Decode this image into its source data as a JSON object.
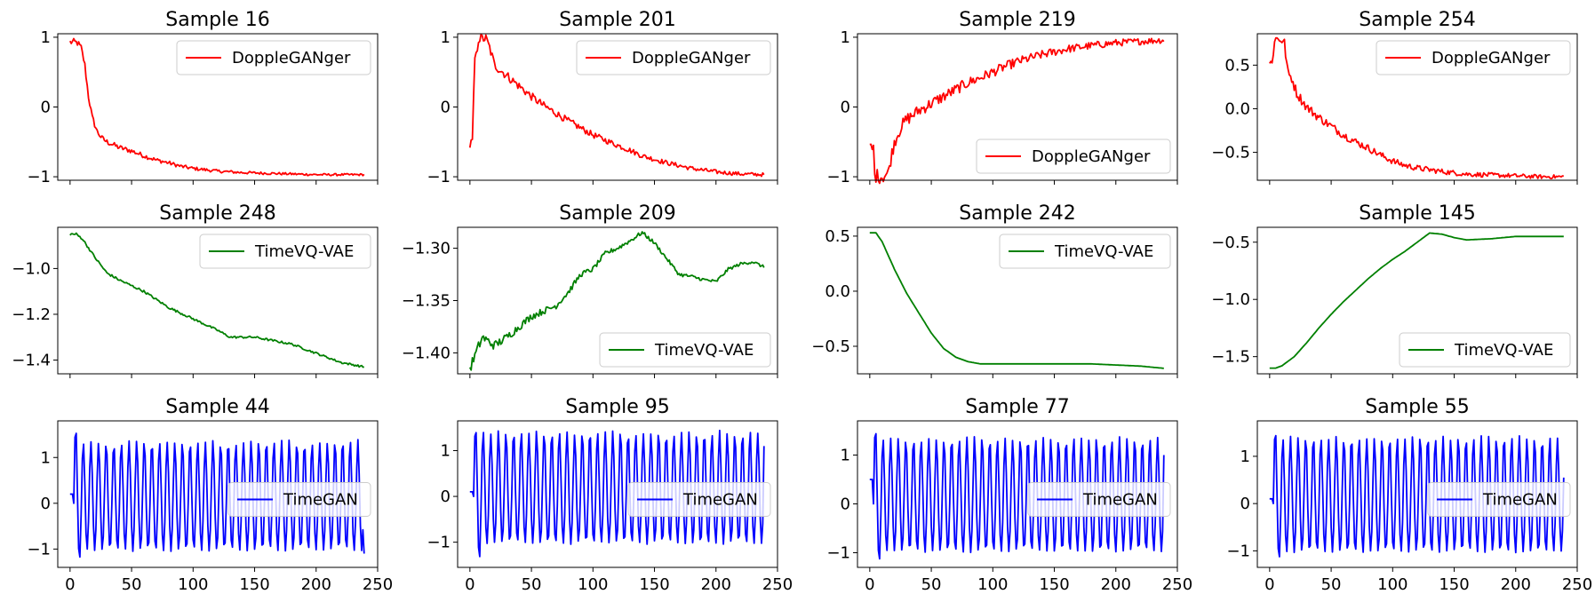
{
  "figure": {
    "rows": 3,
    "cols": 4,
    "x_ticks": [
      0,
      50,
      100,
      150,
      200,
      250
    ],
    "x_range": [
      -10,
      250
    ]
  },
  "chart_data": [
    {
      "type": "line",
      "title": "Sample 16",
      "legend": "DoppleGANger",
      "color": "#ff0000",
      "ylim": [
        -1.05,
        1.05
      ],
      "yticks": [
        1,
        0,
        -1
      ],
      "ytick_labels": [
        "1",
        "0",
        "−1"
      ],
      "legend_loc": "upper-right",
      "x_ticks_shown": false,
      "series": {
        "x": [
          0,
          3,
          6,
          9,
          12,
          15,
          18,
          22,
          26,
          30,
          40,
          50,
          60,
          70,
          80,
          90,
          100,
          120,
          140,
          160,
          180,
          200,
          220,
          239
        ],
        "values": [
          0.93,
          0.93,
          0.92,
          0.85,
          0.6,
          0.15,
          -0.15,
          -0.35,
          -0.45,
          -0.5,
          -0.58,
          -0.63,
          -0.7,
          -0.76,
          -0.8,
          -0.85,
          -0.88,
          -0.92,
          -0.94,
          -0.95,
          -0.96,
          -0.97,
          -0.97,
          -0.97
        ],
        "noise": 0.04,
        "noise_decay": 90
      }
    },
    {
      "type": "line",
      "title": "Sample 201",
      "legend": "DoppleGANger",
      "color": "#ff0000",
      "ylim": [
        -1.05,
        1.05
      ],
      "yticks": [
        1,
        0,
        -1
      ],
      "ytick_labels": [
        "1",
        "0",
        "−1"
      ],
      "legend_loc": "upper-right",
      "x_ticks_shown": false,
      "series": {
        "x": [
          0,
          2,
          4,
          5,
          7,
          9,
          13,
          16,
          20,
          30,
          40,
          50,
          60,
          80,
          100,
          120,
          130,
          140,
          160,
          180,
          200,
          220,
          239
        ],
        "values": [
          -0.55,
          -0.5,
          0.7,
          0.72,
          0.98,
          0.98,
          0.98,
          0.85,
          0.6,
          0.45,
          0.3,
          0.15,
          0.02,
          -0.2,
          -0.4,
          -0.55,
          -0.62,
          -0.7,
          -0.8,
          -0.88,
          -0.93,
          -0.96,
          -0.97
        ],
        "noise": 0.06,
        "noise_decay": 120
      }
    },
    {
      "type": "line",
      "title": "Sample 219",
      "legend": "DoppleGANger",
      "color": "#ff0000",
      "ylim": [
        -1.05,
        1.05
      ],
      "yticks": [
        1,
        0,
        -1
      ],
      "ytick_labels": [
        "1",
        "0",
        "−1"
      ],
      "legend_loc": "lower-right",
      "x_ticks_shown": false,
      "series": {
        "x": [
          0,
          3,
          4,
          10,
          15,
          17,
          20,
          25,
          30,
          40,
          50,
          60,
          70,
          80,
          90,
          100,
          110,
          120,
          140,
          160,
          180,
          200,
          220,
          239
        ],
        "values": [
          -0.6,
          -0.6,
          -0.98,
          -1.0,
          -0.95,
          -0.75,
          -0.5,
          -0.3,
          -0.18,
          -0.05,
          0.05,
          0.15,
          0.25,
          0.35,
          0.42,
          0.5,
          0.58,
          0.65,
          0.75,
          0.83,
          0.88,
          0.92,
          0.94,
          0.96
        ],
        "noise": 0.08,
        "noise_decay": 180
      }
    },
    {
      "type": "line",
      "title": "Sample 254",
      "legend": "DoppleGANger",
      "color": "#ff0000",
      "ylim": [
        -0.82,
        0.86
      ],
      "yticks": [
        0.5,
        0.0,
        -0.5
      ],
      "ytick_labels": [
        "0.5",
        "0.0",
        "−0.5"
      ],
      "legend_loc": "upper-right",
      "x_ticks_shown": false,
      "series": {
        "x": [
          0,
          2,
          4,
          6,
          9,
          12,
          15,
          18,
          22,
          26,
          30,
          40,
          50,
          60,
          70,
          80,
          90,
          100,
          110,
          120,
          140,
          160,
          180,
          200,
          220,
          239
        ],
        "values": [
          0.52,
          0.52,
          0.8,
          0.8,
          0.8,
          0.75,
          0.4,
          0.35,
          0.18,
          0.1,
          0.02,
          -0.1,
          -0.2,
          -0.3,
          -0.38,
          -0.45,
          -0.53,
          -0.6,
          -0.65,
          -0.68,
          -0.72,
          -0.75,
          -0.76,
          -0.77,
          -0.78,
          -0.78
        ],
        "noise": 0.05,
        "noise_decay": 120
      }
    },
    {
      "type": "line",
      "title": "Sample 248",
      "legend": "TimeVQ-VAE",
      "color": "#008000",
      "ylim": [
        -1.46,
        -0.82
      ],
      "yticks": [
        -1.0,
        -1.2,
        -1.4
      ],
      "ytick_labels": [
        "−1.0",
        "−1.2",
        "−1.4"
      ],
      "legend_loc": "upper-right",
      "x_ticks_shown": false,
      "series": {
        "x": [
          0,
          5,
          10,
          20,
          30,
          40,
          60,
          80,
          100,
          120,
          130,
          140,
          150,
          160,
          180,
          200,
          220,
          239
        ],
        "values": [
          -0.85,
          -0.85,
          -0.87,
          -0.95,
          -1.02,
          -1.05,
          -1.1,
          -1.17,
          -1.22,
          -1.27,
          -1.3,
          -1.3,
          -1.3,
          -1.31,
          -1.33,
          -1.37,
          -1.41,
          -1.43
        ],
        "noise": 0.004,
        "noise_decay": 1000
      }
    },
    {
      "type": "line",
      "title": "Sample 209",
      "legend": "TimeVQ-VAE",
      "color": "#008000",
      "ylim": [
        -1.42,
        -1.28
      ],
      "yticks": [
        -1.3,
        -1.35,
        -1.4
      ],
      "ytick_labels": [
        "−1.30",
        "−1.35",
        "−1.40"
      ],
      "legend_loc": "lower-right",
      "x_ticks_shown": false,
      "series": {
        "x": [
          0,
          5,
          10,
          20,
          30,
          40,
          50,
          60,
          70,
          80,
          90,
          100,
          110,
          120,
          130,
          140,
          150,
          160,
          170,
          180,
          190,
          200,
          210,
          220,
          230,
          239
        ],
        "values": [
          -1.415,
          -1.4,
          -1.385,
          -1.393,
          -1.385,
          -1.375,
          -1.365,
          -1.36,
          -1.355,
          -1.342,
          -1.325,
          -1.32,
          -1.305,
          -1.3,
          -1.293,
          -1.285,
          -1.295,
          -1.31,
          -1.325,
          -1.327,
          -1.33,
          -1.332,
          -1.32,
          -1.315,
          -1.313,
          -1.318
        ],
        "noise": 0.004,
        "noise_decay": 80
      }
    },
    {
      "type": "line",
      "title": "Sample 242",
      "legend": "TimeVQ-VAE",
      "color": "#008000",
      "ylim": [
        -0.75,
        0.58
      ],
      "yticks": [
        0.5,
        0.0,
        -0.5
      ],
      "ytick_labels": [
        "0.5",
        "0.0",
        "−0.5"
      ],
      "legend_loc": "upper-right",
      "x_ticks_shown": false,
      "series": {
        "x": [
          0,
          5,
          10,
          20,
          30,
          40,
          50,
          60,
          70,
          80,
          90,
          100,
          120,
          140,
          160,
          180,
          200,
          220,
          239
        ],
        "values": [
          0.53,
          0.53,
          0.45,
          0.2,
          -0.02,
          -0.2,
          -0.38,
          -0.52,
          -0.6,
          -0.64,
          -0.66,
          -0.66,
          -0.66,
          -0.66,
          -0.66,
          -0.66,
          -0.67,
          -0.68,
          -0.7
        ],
        "noise": 0.0,
        "noise_decay": 1000
      }
    },
    {
      "type": "line",
      "title": "Sample 145",
      "legend": "TimeVQ-VAE",
      "color": "#008000",
      "ylim": [
        -1.65,
        -0.37
      ],
      "yticks": [
        -0.5,
        -1.0,
        -1.5
      ],
      "ytick_labels": [
        "−0.5",
        "−1.0",
        "−1.5"
      ],
      "legend_loc": "lower-right",
      "x_ticks_shown": false,
      "series": {
        "x": [
          0,
          5,
          10,
          20,
          30,
          40,
          50,
          60,
          70,
          80,
          90,
          100,
          110,
          120,
          130,
          140,
          150,
          160,
          180,
          200,
          220,
          239
        ],
        "values": [
          -1.6,
          -1.6,
          -1.58,
          -1.5,
          -1.38,
          -1.25,
          -1.13,
          -1.02,
          -0.92,
          -0.82,
          -0.73,
          -0.65,
          -0.58,
          -0.5,
          -0.42,
          -0.43,
          -0.46,
          -0.48,
          -0.47,
          -0.45,
          -0.45,
          -0.45
        ],
        "noise": 0.0,
        "noise_decay": 1000
      }
    },
    {
      "type": "line",
      "title": "Sample 44",
      "legend": "TimeGAN",
      "color": "#0000ff",
      "ylim": [
        -1.4,
        1.8
      ],
      "yticks": [
        1,
        0,
        -1
      ],
      "ytick_labels": [
        "1",
        "0",
        "−1"
      ],
      "legend_loc": "center-right",
      "x_ticks_shown": true,
      "series": {
        "kind": "oscillation",
        "start": 0.2,
        "period": 6.2,
        "amp_hi": 1.4,
        "amp_lo": -1.05,
        "first_peak": 1.7,
        "first_trough": -1.25,
        "n": 240,
        "end": -1.1
      }
    },
    {
      "type": "line",
      "title": "Sample 95",
      "legend": "TimeGAN",
      "color": "#0000ff",
      "ylim": [
        -1.55,
        1.65
      ],
      "yticks": [
        1,
        0,
        -1
      ],
      "ytick_labels": [
        "1",
        "0",
        "−1"
      ],
      "legend_loc": "center-right",
      "x_ticks_shown": true,
      "series": {
        "kind": "oscillation",
        "start": 0.1,
        "period": 6.2,
        "amp_hi": 1.45,
        "amp_lo": -1.05,
        "first_peak": 1.55,
        "first_trough": -1.4,
        "n": 240,
        "end": 1.1
      }
    },
    {
      "type": "line",
      "title": "Sample 77",
      "legend": "TimeGAN",
      "color": "#0000ff",
      "ylim": [
        -1.3,
        1.7
      ],
      "yticks": [
        1,
        0,
        -1
      ],
      "ytick_labels": [
        "1",
        "0",
        "−1"
      ],
      "legend_loc": "center-right",
      "x_ticks_shown": true,
      "series": {
        "kind": "oscillation",
        "start": 0.5,
        "period": 6.2,
        "amp_hi": 1.4,
        "amp_lo": -1.0,
        "first_peak": 1.6,
        "first_trough": -1.2,
        "n": 240,
        "end": 1.0
      }
    },
    {
      "type": "line",
      "title": "Sample 55",
      "legend": "TimeGAN",
      "color": "#0000ff",
      "ylim": [
        -1.35,
        1.75
      ],
      "yticks": [
        1,
        0,
        -1
      ],
      "ytick_labels": [
        "1",
        "0",
        "−1"
      ],
      "legend_loc": "center-right",
      "x_ticks_shown": true,
      "series": {
        "kind": "oscillation",
        "start": 0.1,
        "period": 6.2,
        "amp_hi": 1.45,
        "amp_lo": -1.05,
        "first_peak": 1.6,
        "first_trough": -1.2,
        "n": 240,
        "end": 0.55
      }
    }
  ]
}
